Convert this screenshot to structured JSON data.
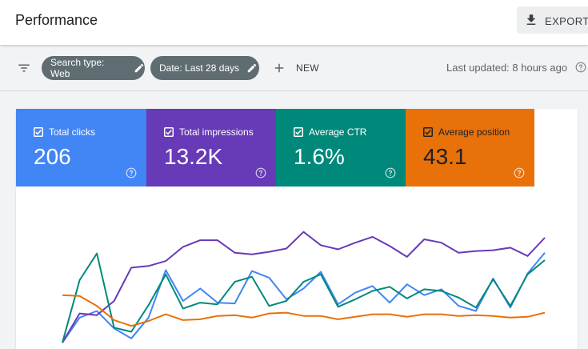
{
  "header": {
    "title": "Performance",
    "export_label": "EXPORT"
  },
  "toolbar": {
    "filters": [
      {
        "label": "Search type: Web"
      },
      {
        "label": "Date: Last 28 days"
      }
    ],
    "new_label": "NEW",
    "last_updated": "Last updated: 8 hours ago"
  },
  "metrics": [
    {
      "label": "Total clicks",
      "value": "206",
      "color": "#4285f4",
      "checked": true
    },
    {
      "label": "Total impressions",
      "value": "13.2K",
      "color": "#673ab7",
      "checked": true
    },
    {
      "label": "Average CTR",
      "value": "1.6%",
      "color": "#00897b",
      "checked": true
    },
    {
      "label": "Average position",
      "value": "43.1",
      "color": "#e8710a",
      "checked": true
    }
  ],
  "icons": {
    "export": "download-icon",
    "filter": "filter-icon",
    "chip_edit": "pencil-icon",
    "new": "plus-icon",
    "help": "help-circle-icon",
    "checkbox": "checkbox-checked-icon"
  },
  "chart_data": {
    "type": "line",
    "x": [
      1,
      2,
      3,
      4,
      5,
      6,
      7,
      8,
      9,
      10,
      11,
      12,
      13,
      14,
      15,
      16,
      17,
      18,
      19,
      20,
      21,
      22,
      23,
      24,
      25,
      26,
      27,
      28,
      29
    ],
    "xlabel": "",
    "ylabel": "",
    "grid": false,
    "series": [
      {
        "color": "#4285f4",
        "values": [
          0,
          30,
          38,
          17,
          5,
          30,
          87,
          50,
          65,
          48,
          47,
          86,
          78,
          52,
          65,
          85,
          46,
          60,
          68,
          48,
          70,
          57,
          64,
          44,
          38,
          77,
          42,
          83,
          108
        ]
      },
      {
        "color": "#673ab7",
        "values": [
          0,
          35,
          33,
          50,
          90,
          92,
          98,
          115,
          123,
          123,
          108,
          106,
          109,
          113,
          133,
          117,
          112,
          120,
          127,
          116,
          103,
          124,
          120,
          108,
          110,
          111,
          114,
          104,
          126
        ]
      },
      {
        "color": "#00897b",
        "values": [
          0,
          75,
          107,
          18,
          13,
          45,
          82,
          41,
          48,
          46,
          73,
          79,
          44,
          50,
          73,
          82,
          43,
          52,
          62,
          67,
          53,
          64,
          62,
          54,
          42,
          76,
          44,
          82,
          99
        ]
      },
      {
        "color": "#e8710a",
        "values": [
          57,
          56,
          44,
          27,
          20,
          26,
          34,
          27,
          28,
          32,
          33,
          30,
          35,
          36,
          32,
          32,
          28,
          31,
          34,
          34,
          31,
          34,
          34,
          32,
          33,
          32,
          30,
          31,
          36
        ]
      }
    ]
  }
}
